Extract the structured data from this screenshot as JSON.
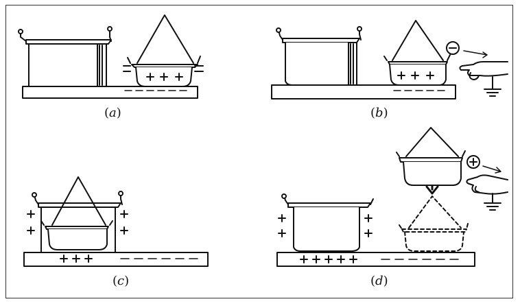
{
  "figure": {
    "panels": [
      {
        "id": "a",
        "label": "(a)"
      },
      {
        "id": "b",
        "label": "(b)"
      },
      {
        "id": "c",
        "label": "(c)"
      },
      {
        "id": "d",
        "label": "(d)"
      }
    ],
    "signs": {
      "plus": "+",
      "minus": "−",
      "circle_minus": "⊖",
      "circle_plus": "⊕"
    },
    "colors": {
      "ink": "#111111",
      "frame": "#333333",
      "background": "#ffffff"
    }
  }
}
